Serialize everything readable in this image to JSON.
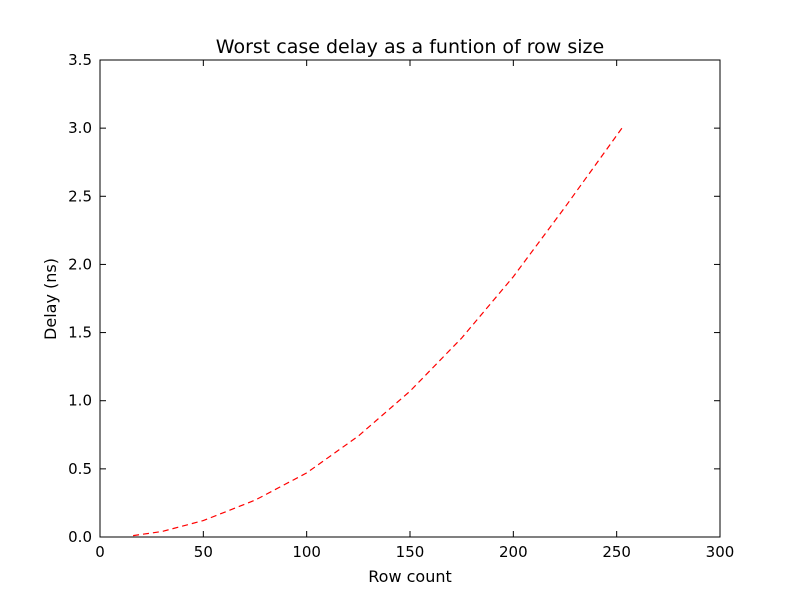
{
  "chart_data": {
    "type": "line",
    "title": "Worst case delay as a funtion of row size",
    "xlabel": "Row count",
    "ylabel": "Delay (ns)",
    "xlim": [
      0,
      300
    ],
    "ylim": [
      0,
      3.5
    ],
    "xticks": [
      0,
      50,
      100,
      150,
      200,
      250,
      300
    ],
    "yticks": [
      0,
      0.5,
      1.0,
      1.5,
      2.0,
      2.5,
      3.0,
      3.5
    ],
    "xtick_labels": [
      "0",
      "50",
      "100",
      "150",
      "200",
      "250",
      "300"
    ],
    "ytick_labels": [
      "0.0",
      "0.5",
      "1.0",
      "1.5",
      "2.0",
      "2.5",
      "3.0",
      "3.5"
    ],
    "grid": false,
    "series": [
      {
        "color": "#ff0000",
        "line_style": "dashed",
        "x": [
          16,
          30,
          50,
          75,
          100,
          125,
          150,
          175,
          200,
          225,
          253
        ],
        "y": [
          0.01,
          0.04,
          0.12,
          0.27,
          0.47,
          0.74,
          1.07,
          1.46,
          1.91,
          2.42,
          3.01
        ]
      }
    ]
  }
}
